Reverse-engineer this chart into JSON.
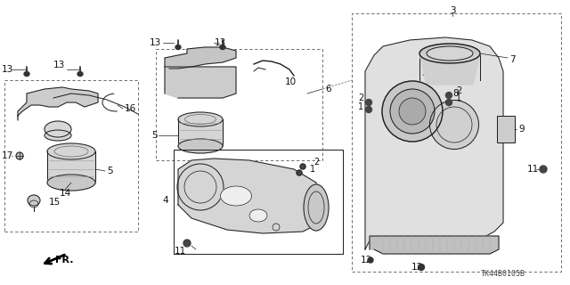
{
  "bg_color": "#ffffff",
  "diagram_code": "TK44B0105B",
  "label_fontsize": 7.5,
  "small_fontsize": 6.5,
  "line_color": "#1a1a1a",
  "label_color": "#111111"
}
